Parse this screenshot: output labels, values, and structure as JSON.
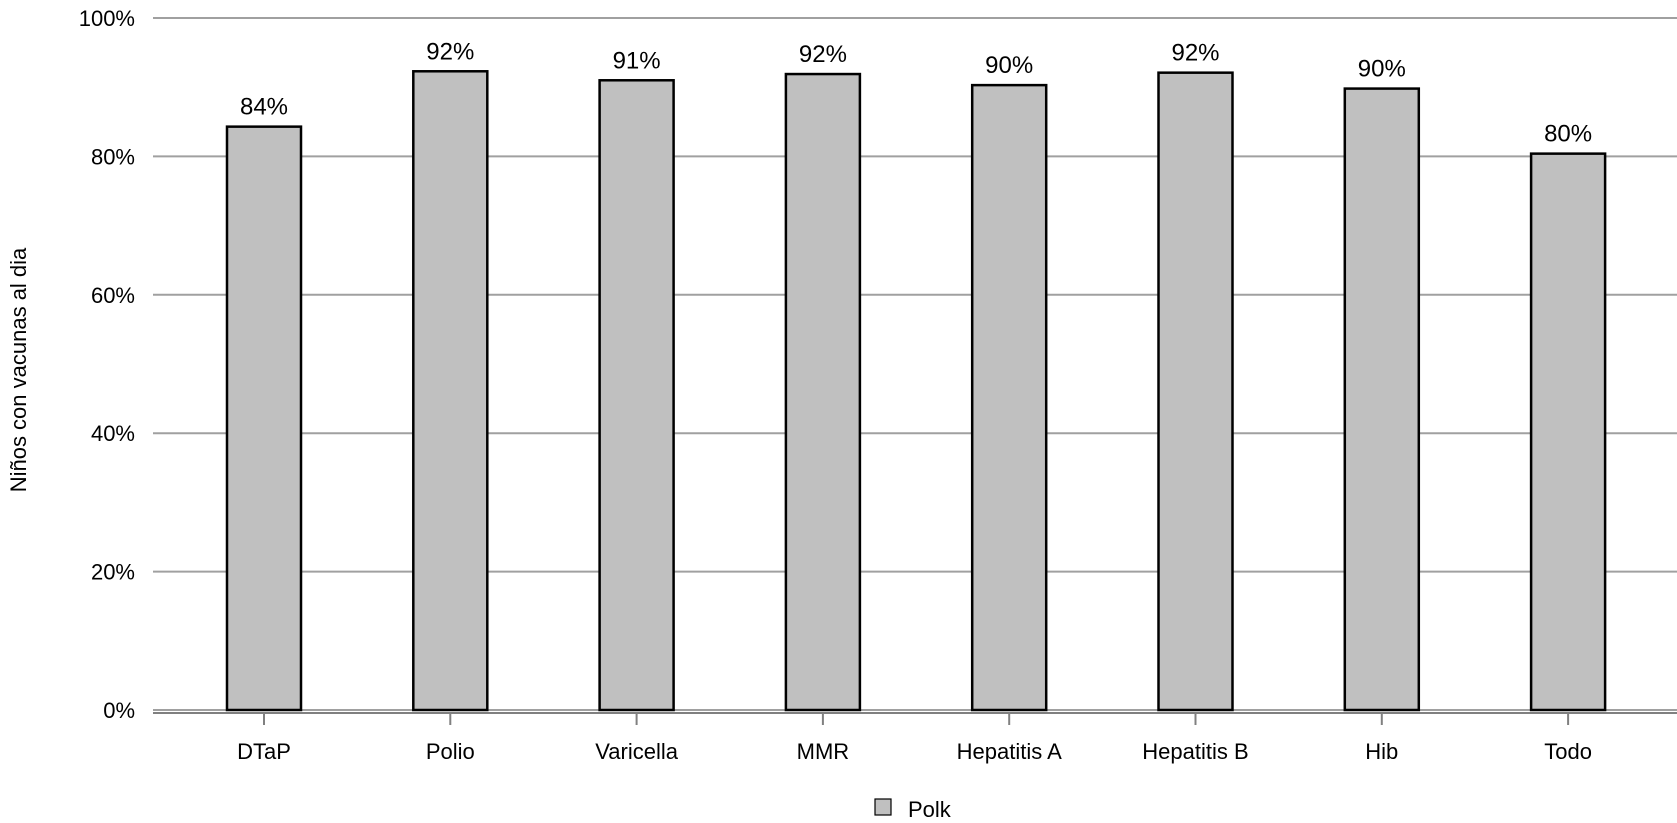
{
  "chart_data": {
    "type": "bar",
    "categories": [
      "DTaP",
      "Polio",
      "Varicella",
      "MMR",
      "Hepatitis A",
      "Hepatitis B",
      "Hib",
      "Todo"
    ],
    "series": [
      {
        "name": "Polk",
        "values": [
          84.3,
          92.3,
          91.0,
          91.9,
          90.3,
          92.1,
          89.8,
          80.4
        ],
        "labels": [
          "84%",
          "92%",
          "91%",
          "92%",
          "90%",
          "92%",
          "90%",
          "80%"
        ]
      }
    ],
    "ylabel": "Niños con vacunas al dia",
    "xlabel": "",
    "ylim": [
      0,
      100
    ],
    "yticks": [
      0,
      20,
      40,
      60,
      80,
      100
    ],
    "ytick_labels": [
      "0%",
      "20%",
      "40%",
      "60%",
      "80%",
      "100%"
    ],
    "grid": true,
    "legend_position": "bottom-center",
    "colors": {
      "bar_fill": "#c0c0c0",
      "bar_stroke": "#000000",
      "grid": "#a0a0a0"
    }
  }
}
